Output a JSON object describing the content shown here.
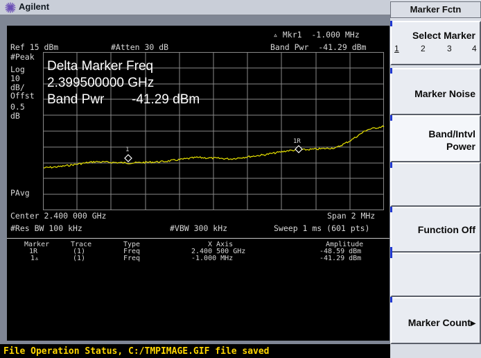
{
  "brand": {
    "name": "Agilent"
  },
  "screen": {
    "ref_label": "Ref 15 dBm",
    "atten_label": "#Atten 30 dB",
    "marker_readout": "▵ Mkr1  -1.000 MHz",
    "band_power_readout": "Band Pwr  -41.29 dBm",
    "scale_labels": [
      "#Peak",
      "Log",
      "10",
      "dB/",
      "Offst",
      "0.5",
      "dB"
    ],
    "pavg_label": "PAvg",
    "overlay": {
      "line1": "Delta Marker Freq",
      "line2": "2.399500000 GHz",
      "line3_label": "Band Pwr",
      "line3_value": "-41.29 dBm"
    },
    "marker_1_label": "1",
    "marker_1r_label": "1R",
    "center_label": "Center 2.400 000 GHz",
    "span_label": "Span 2 MHz",
    "res_bw_label": "#Res BW 100 kHz",
    "vbw_label": "#VBW 300 kHz",
    "sweep_label": "Sweep 1 ms (601 pts)",
    "trace_color": "#e8e200"
  },
  "marker_table": {
    "headers": [
      "Marker",
      "Trace",
      "Type",
      "X Axis",
      "Amplitude"
    ],
    "rows": [
      [
        "1R",
        "(1)",
        "Freq",
        "2.400 500 GHz",
        "-48.59 dBm"
      ],
      [
        "1▵",
        "(1)",
        "Freq",
        "-1.000 MHz",
        "-41.29 dBm"
      ]
    ]
  },
  "status": {
    "message": "File Operation Status, C:/TMPIMAGE.GIF file saved",
    "color": "#ffd600"
  },
  "softkeys": {
    "menu_title": "Marker Fctn",
    "select_marker": {
      "label": "Select Marker",
      "options": [
        "1",
        "2",
        "3",
        "4"
      ],
      "selected": "1"
    },
    "marker_noise": "Marker Noise",
    "band_intvl_line1": "Band/Intvl",
    "band_intvl_line2": "Power",
    "function_off": "Function Off",
    "marker_count": "Marker Count▸"
  }
}
